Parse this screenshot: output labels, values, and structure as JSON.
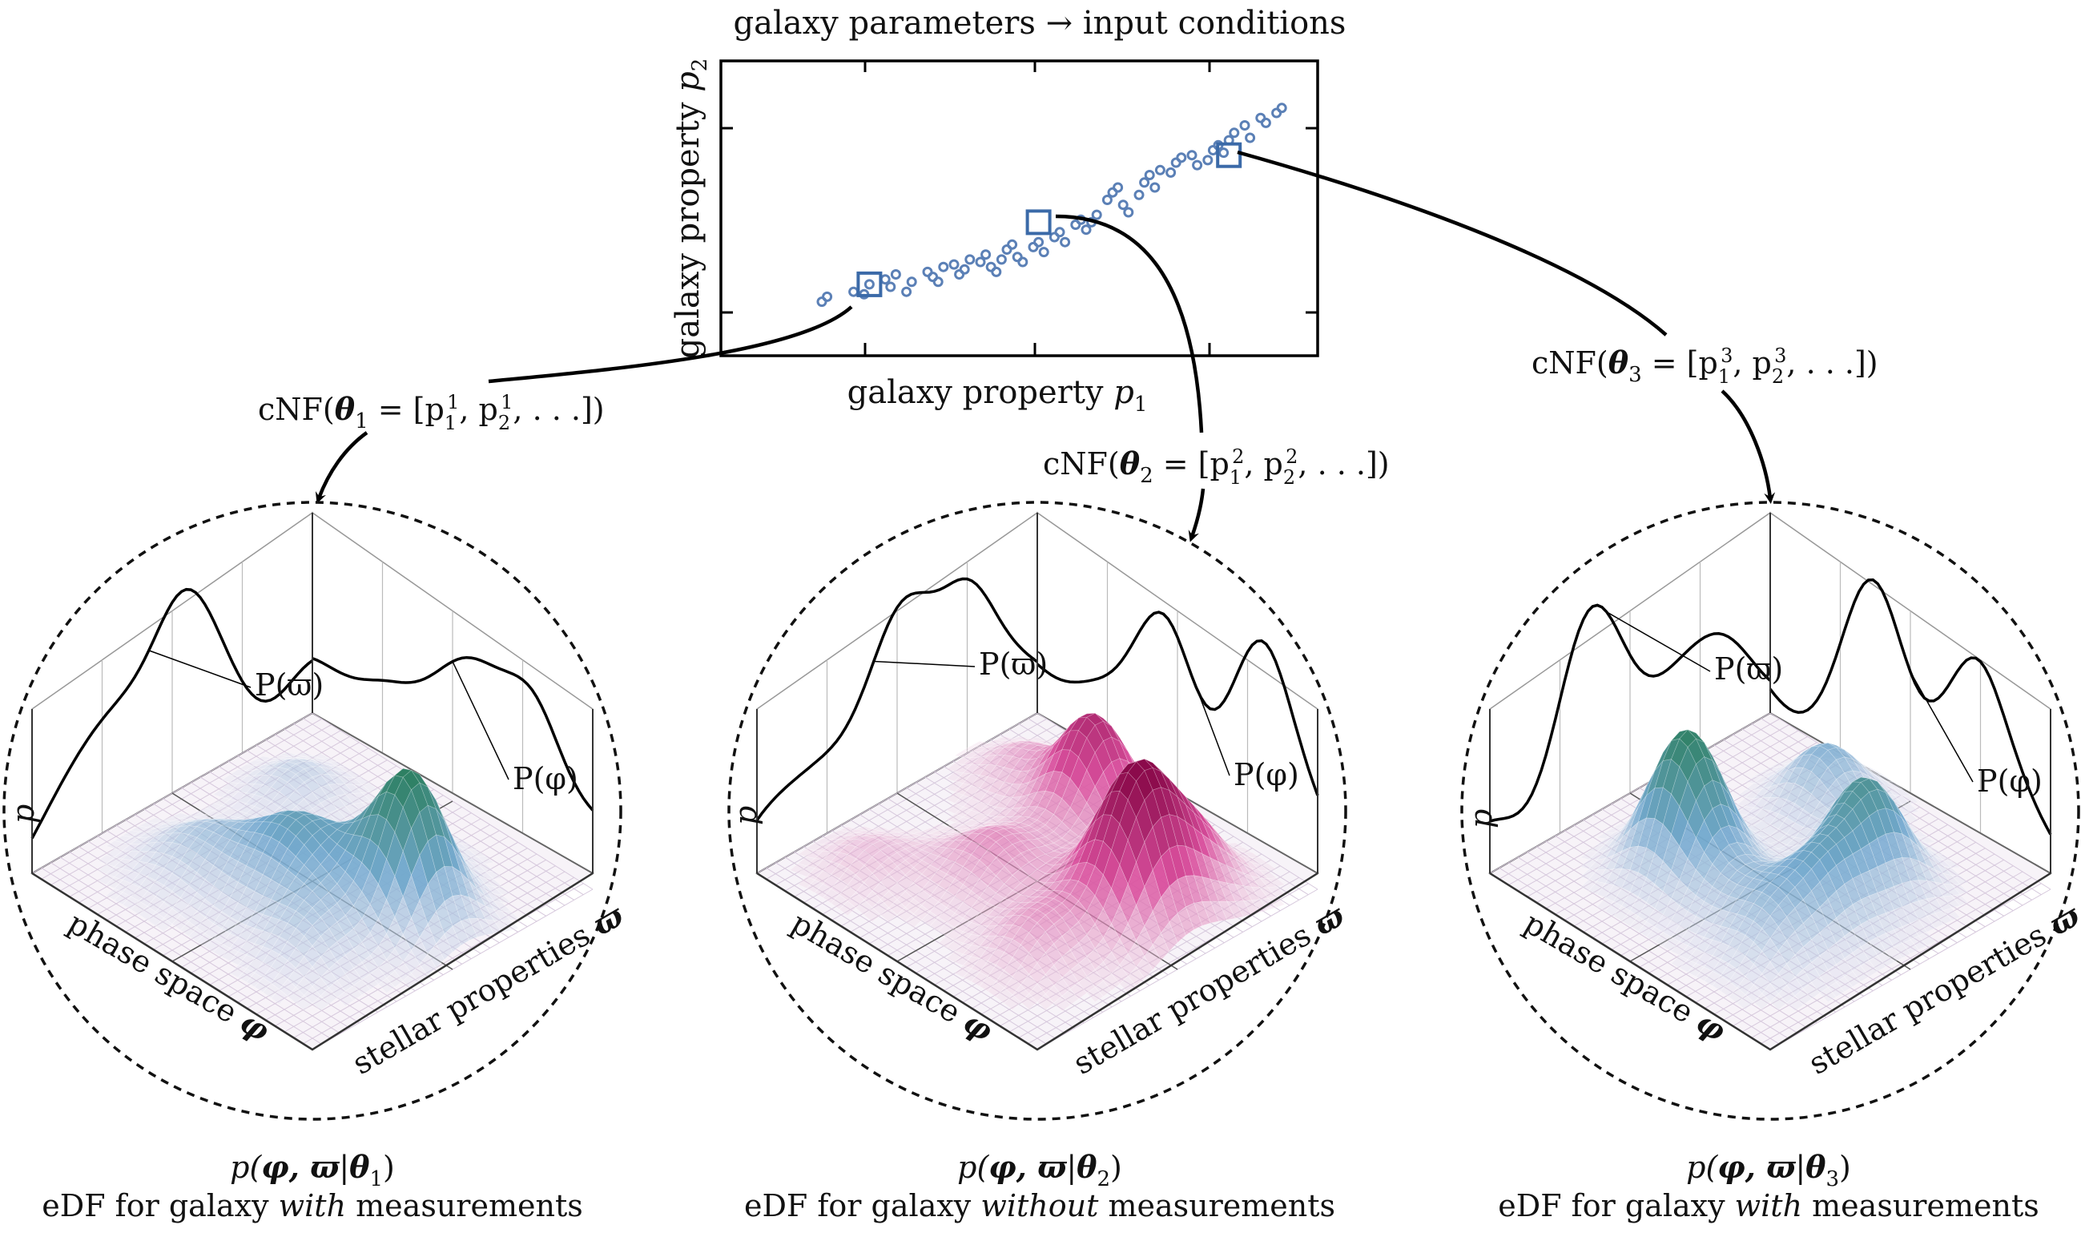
{
  "top_plot": {
    "title": "galaxy parameters → input conditions",
    "xlabel_text": "galaxy property ",
    "xlabel_sym": "p",
    "xlabel_sub": "1",
    "ylabel_text": "galaxy property ",
    "ylabel_sym": "p",
    "ylabel_sub": "2"
  },
  "chart_data": {
    "type": "scatter",
    "title": "galaxy parameters → input conditions",
    "xlabel": "galaxy property p1",
    "ylabel": "galaxy property p2",
    "marker_color": "#5b80b6",
    "x": [
      0.1,
      0.11,
      0.16,
      0.18,
      0.19,
      0.22,
      0.23,
      0.24,
      0.26,
      0.27,
      0.3,
      0.31,
      0.32,
      0.33,
      0.35,
      0.36,
      0.37,
      0.38,
      0.4,
      0.41,
      0.42,
      0.43,
      0.44,
      0.45,
      0.46,
      0.47,
      0.48,
      0.5,
      0.51,
      0.52,
      0.54,
      0.55,
      0.56,
      0.58,
      0.59,
      0.6,
      0.61,
      0.62,
      0.64,
      0.65,
      0.66,
      0.67,
      0.68,
      0.7,
      0.71,
      0.72,
      0.73,
      0.74,
      0.76,
      0.77,
      0.78,
      0.8,
      0.81,
      0.83,
      0.84,
      0.85,
      0.86,
      0.87,
      0.88,
      0.9,
      0.91,
      0.93,
      0.94,
      0.96,
      0.97
    ],
    "y": [
      0.14,
      0.16,
      0.18,
      0.17,
      0.21,
      0.23,
      0.2,
      0.25,
      0.18,
      0.22,
      0.26,
      0.24,
      0.22,
      0.28,
      0.29,
      0.25,
      0.27,
      0.31,
      0.3,
      0.33,
      0.28,
      0.26,
      0.31,
      0.35,
      0.37,
      0.32,
      0.3,
      0.36,
      0.38,
      0.34,
      0.4,
      0.42,
      0.38,
      0.45,
      0.47,
      0.43,
      0.46,
      0.49,
      0.55,
      0.58,
      0.6,
      0.53,
      0.5,
      0.57,
      0.62,
      0.65,
      0.6,
      0.67,
      0.66,
      0.7,
      0.72,
      0.73,
      0.69,
      0.71,
      0.75,
      0.77,
      0.74,
      0.79,
      0.82,
      0.85,
      0.8,
      0.88,
      0.86,
      0.9,
      0.92
    ],
    "highlighted": [
      {
        "name": "theta1",
        "x": 0.19,
        "y": 0.21
      },
      {
        "name": "theta2",
        "x": 0.51,
        "y": 0.46
      },
      {
        "name": "theta3",
        "x": 0.87,
        "y": 0.73
      }
    ],
    "ylim": [
      0,
      1
    ],
    "xlim": [
      0,
      1
    ],
    "xticks": 3,
    "yticks": 2
  },
  "cnf_labels": {
    "c1_pre": "cNF(",
    "c1_theta": "θ",
    "c1_sub": "1",
    "c1_eq": " = [p",
    "c1_s1": "1",
    "c1_sup1": "1",
    "c1_mid": ", p",
    "c1_s2": "2",
    "c1_sup2": "1",
    "c1_end": ", . . .])",
    "c2_pre": "cNF(",
    "c2_theta": "θ",
    "c2_sub": "2",
    "c2_eq": " = [p",
    "c2_s1": "1",
    "c2_sup1": "2",
    "c2_mid": ", p",
    "c2_s2": "2",
    "c2_sup2": "2",
    "c2_end": ", . . .])",
    "c3_pre": "cNF(",
    "c3_theta": "θ",
    "c3_sub": "3",
    "c3_eq": " = [p",
    "c3_s1": "1",
    "c3_sup1": "3",
    "c3_mid": ", p",
    "c3_s2": "2",
    "c3_sup2": "3",
    "c3_end": ", . . .])"
  },
  "panels": [
    {
      "id": "panel1",
      "color_low": "#ece6f2",
      "color_mid": "#74a9cf",
      "color_high": "#2c7f61",
      "p_varpi": "P(ϖ)",
      "p_phi": "P(φ)",
      "p_axis": "p",
      "phase_label": "phase space ",
      "phase_sym": "φ",
      "stellar_label": "stellar properties ",
      "stellar_sym": "ϖ",
      "caption_formula_a": "p(",
      "caption_formula_b": "φ, ϖ",
      "caption_formula_c": "|",
      "caption_formula_d": "θ",
      "caption_formula_e": "1",
      "caption_formula_f": ")",
      "caption_a": "eDF for galaxy ",
      "caption_b": "with",
      "caption_c": " measurements"
    },
    {
      "id": "panel2",
      "color_low": "#f0e0ec",
      "color_mid": "#d94f9d",
      "color_high": "#8b0a4b",
      "p_varpi": "P(ϖ)",
      "p_phi": "P(φ)",
      "p_axis": "p",
      "phase_label": "phase space ",
      "phase_sym": "φ",
      "stellar_label": "stellar properties ",
      "stellar_sym": "ϖ",
      "caption_formula_a": "p(",
      "caption_formula_b": "φ, ϖ",
      "caption_formula_c": "|",
      "caption_formula_d": "θ",
      "caption_formula_e": "2",
      "caption_formula_f": ")",
      "caption_a": "eDF for galaxy ",
      "caption_b": "without",
      "caption_c": " measurements"
    },
    {
      "id": "panel3",
      "color_low": "#ece6f2",
      "color_mid": "#74a9cf",
      "color_high": "#2c7f61",
      "p_varpi": "P(ϖ)",
      "p_phi": "P(φ)",
      "p_axis": "p",
      "phase_label": "phase space ",
      "phase_sym": "φ",
      "stellar_label": "stellar properties ",
      "stellar_sym": "ϖ",
      "caption_formula_a": "p(",
      "caption_formula_b": "φ, ϖ",
      "caption_formula_c": "|",
      "caption_formula_d": "θ",
      "caption_formula_e": "3",
      "caption_formula_f": ")",
      "caption_a": "eDF for galaxy ",
      "caption_b": "with",
      "caption_c": " measurements"
    }
  ]
}
